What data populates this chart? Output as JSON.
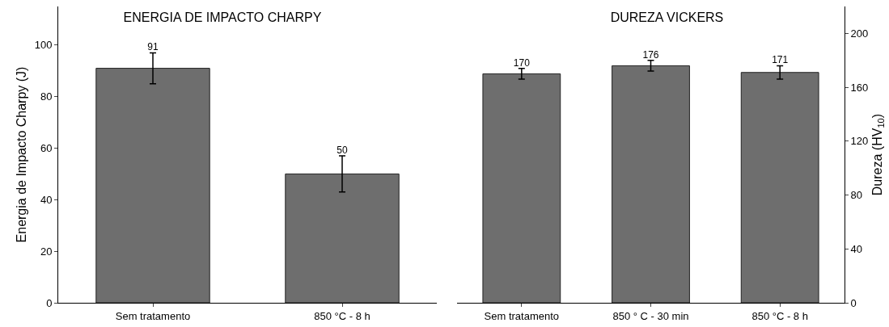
{
  "chart_data": [
    {
      "type": "bar",
      "title": "ENERGIA DE IMPACTO CHARPY",
      "ylabel": "Energia de Impacto Charpy (J)",
      "categories": [
        "Sem tratamento",
        "850 °C - 8 h"
      ],
      "values": [
        91,
        50
      ],
      "errors": [
        6,
        7
      ],
      "data_labels": true,
      "color": "#6e6e6e",
      "ylim": [
        0,
        115
      ],
      "yticks": [
        0,
        20,
        40,
        60,
        80,
        100
      ]
    },
    {
      "type": "bar",
      "title": "DUREZA VICKERS",
      "y2label": "Dureza (HV$_{10}$)",
      "categories": [
        "Sem tratamento",
        "850 ° C - 30 min",
        "850 °C - 8 h"
      ],
      "series": [
        {
          "color": "#6e6e6e",
          "values": [
            170,
            176,
            171
          ],
          "errors": [
            4,
            4,
            5
          ],
          "axis": "y2"
        }
      ],
      "data_labels": true,
      "y2lim": [
        0,
        220
      ],
      "y2ticks": [
        0,
        40,
        80,
        120,
        160,
        200
      ]
    }
  ]
}
